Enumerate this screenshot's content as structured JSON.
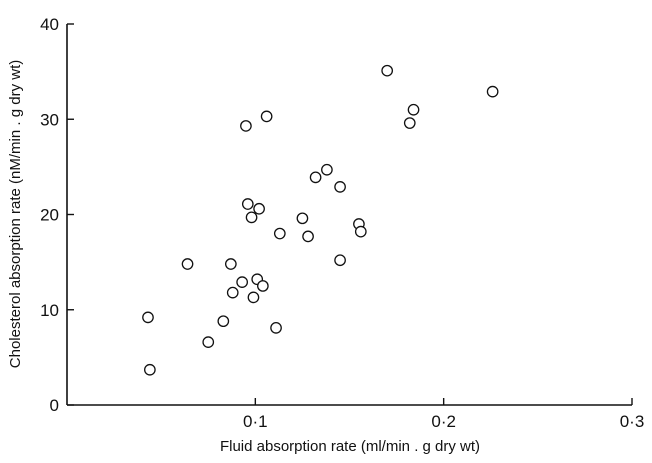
{
  "chart_data": {
    "type": "scatter",
    "title": "",
    "xlabel": "Fluid absorption rate (ml/min . g dry wt)",
    "ylabel": "Cholesterol absorption rate (nM/min . g dry wt)",
    "xlim": [
      0,
      0.3
    ],
    "ylim": [
      0,
      40
    ],
    "x_ticks": [
      0.1,
      0.2,
      0.3
    ],
    "x_tick_labels": [
      "0·1",
      "0·2",
      "0·3"
    ],
    "y_ticks": [
      0,
      10,
      20,
      30,
      40
    ],
    "y_tick_labels": [
      "0",
      "10",
      "20",
      "30",
      "40"
    ],
    "grid": false,
    "marker": "open-circle",
    "series": [
      {
        "points": [
          {
            "x": 0.043,
            "y": 9.2
          },
          {
            "x": 0.044,
            "y": 3.7
          },
          {
            "x": 0.064,
            "y": 14.8
          },
          {
            "x": 0.075,
            "y": 6.6
          },
          {
            "x": 0.083,
            "y": 8.8
          },
          {
            "x": 0.087,
            "y": 14.8
          },
          {
            "x": 0.088,
            "y": 11.8
          },
          {
            "x": 0.093,
            "y": 12.9
          },
          {
            "x": 0.095,
            "y": 29.3
          },
          {
            "x": 0.096,
            "y": 21.1
          },
          {
            "x": 0.098,
            "y": 19.7
          },
          {
            "x": 0.099,
            "y": 11.3
          },
          {
            "x": 0.101,
            "y": 13.2
          },
          {
            "x": 0.102,
            "y": 20.6
          },
          {
            "x": 0.104,
            "y": 12.5
          },
          {
            "x": 0.106,
            "y": 30.3
          },
          {
            "x": 0.111,
            "y": 8.1
          },
          {
            "x": 0.113,
            "y": 18.0
          },
          {
            "x": 0.125,
            "y": 19.6
          },
          {
            "x": 0.128,
            "y": 17.7
          },
          {
            "x": 0.132,
            "y": 23.9
          },
          {
            "x": 0.138,
            "y": 24.7
          },
          {
            "x": 0.145,
            "y": 22.9
          },
          {
            "x": 0.145,
            "y": 15.2
          },
          {
            "x": 0.155,
            "y": 19.0
          },
          {
            "x": 0.156,
            "y": 18.2
          },
          {
            "x": 0.17,
            "y": 35.1
          },
          {
            "x": 0.182,
            "y": 29.6
          },
          {
            "x": 0.184,
            "y": 31.0
          },
          {
            "x": 0.226,
            "y": 32.9
          }
        ]
      }
    ]
  }
}
